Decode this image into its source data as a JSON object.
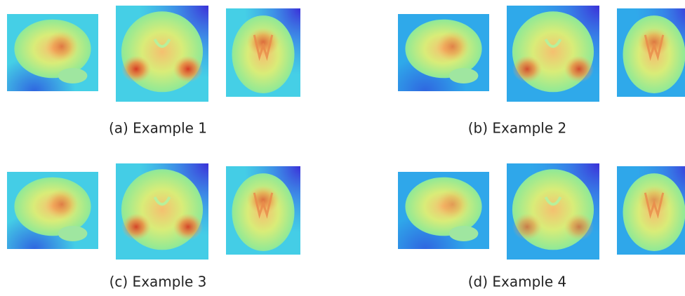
{
  "panels": [
    {
      "caption": "(a) Example 1"
    },
    {
      "caption": "(b) Example 2"
    },
    {
      "caption": "(c) Example 3"
    },
    {
      "caption": "(d) Example 4"
    }
  ]
}
